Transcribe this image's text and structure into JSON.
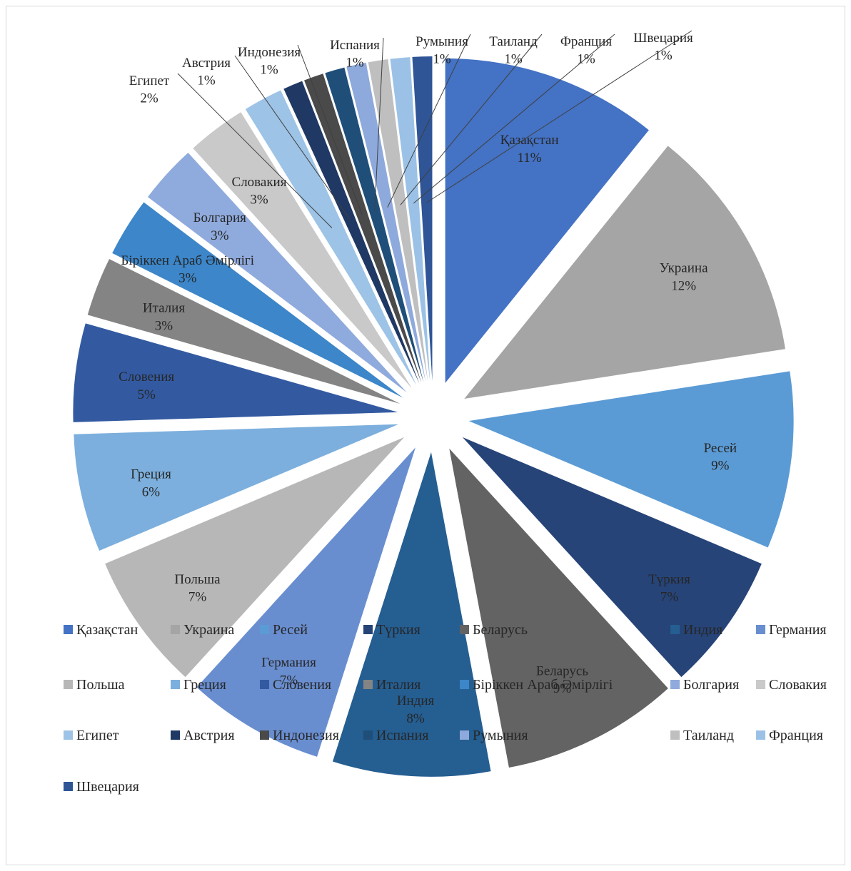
{
  "chart_data": {
    "type": "pie",
    "exploded": true,
    "legend_position": "bottom",
    "categories": [
      "Қазақстан",
      "Украина",
      "Ресей",
      "Түркия",
      "Беларусь",
      "Индия",
      "Германия",
      "Польша",
      "Греция",
      "Словения",
      "Италия",
      "Біріккен Араб Әмірлігі",
      "Болгария",
      "Словакия",
      "Египет",
      "Австрия",
      "Индонезия",
      "Испания",
      "Румыния",
      "Таиланд",
      "Франция",
      "Швецария"
    ],
    "values": [
      11,
      12,
      9,
      7,
      9,
      8,
      7,
      7,
      6,
      5,
      3,
      3,
      3,
      3,
      2,
      1,
      1,
      1,
      1,
      1,
      1,
      1
    ],
    "labels": [
      "11%",
      "12%",
      "9%",
      "7%",
      "9%",
      "8%",
      "7%",
      "7%",
      "6%",
      "5%",
      "3%",
      "3%",
      "3%",
      "3%",
      "2%",
      "1%",
      "1%",
      "1%",
      "1%",
      "1%",
      "1%",
      "1%"
    ],
    "colors": [
      "#4472C4",
      "#A5A5A5",
      "#5B9BD5",
      "#264478",
      "#636363",
      "#255E91",
      "#698ED0",
      "#B7B7B7",
      "#7CAFDD",
      "#335AA1",
      "#848484",
      "#3C86C9",
      "#8FAADC",
      "#C9C9C9",
      "#9DC3E6",
      "#1F3864",
      "#4A4A4A",
      "#1F4E79",
      "#8EA9DB",
      "#BFBFBF",
      "#9BC2E6",
      "#2F5597"
    ]
  }
}
